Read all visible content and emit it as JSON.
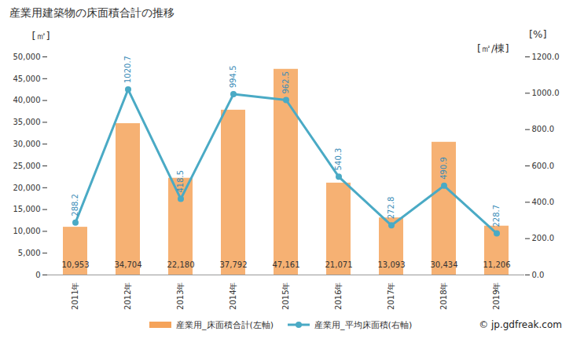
{
  "chart_data": {
    "type": "bar",
    "title": "産業用建築物の床面積合計の推移",
    "y_label": "[㎡]",
    "y2_label": "[%]",
    "y2_sublabel": "[㎡/棟]",
    "source": "© jp.gdfreak.com",
    "categories": [
      "2011年",
      "2012年",
      "2013年",
      "2014年",
      "2015年",
      "2016年",
      "2017年",
      "2018年",
      "2019年"
    ],
    "series": [
      {
        "name": "産業用_床面積合計(左軸)",
        "type": "bar",
        "color": "#f5a35a",
        "values": [
          10953,
          34704,
          22180,
          37792,
          47161,
          21071,
          13093,
          30434,
          11206
        ],
        "value_labels": [
          "10,953",
          "34,704",
          "22,180",
          "37,792",
          "47,161",
          "21,071",
          "13,093",
          "30,434",
          "11,206"
        ]
      },
      {
        "name": "産業用_平均床面積(右軸)",
        "type": "line",
        "axis": "y2",
        "color": "#4aaac5",
        "marker": "circle",
        "values": [
          288.2,
          1020.7,
          418.5,
          994.5,
          962.5,
          540.3,
          272.8,
          490.9,
          228.7
        ]
      }
    ],
    "ylim": [
      0,
      50000
    ],
    "yticks": [
      0,
      {
        "value": 5000,
        "label": "5,000"
      },
      {
        "value": 10000,
        "label": "10,000"
      },
      {
        "value": 15000,
        "label": "15,000"
      },
      {
        "value": 20000,
        "label": "20,000"
      },
      {
        "value": 25000,
        "label": "25,000"
      },
      {
        "value": 30000,
        "label": "30,000"
      },
      {
        "value": 35000,
        "label": "35,000"
      },
      {
        "value": 40000,
        "label": "40,000"
      },
      {
        "value": 45000,
        "label": "45,000"
      },
      {
        "value": 50000,
        "label": "50,000"
      }
    ],
    "y2lim": [
      0,
      1200
    ],
    "y2ticks": [
      {
        "value": 0,
        "label": "0.0"
      },
      {
        "value": 200,
        "label": "200.0"
      },
      {
        "value": 400,
        "label": "400.0"
      },
      {
        "value": 600,
        "label": "600.0"
      },
      {
        "value": 800,
        "label": "800.0"
      },
      {
        "value": 1000,
        "label": "1000.0"
      },
      {
        "value": 1200,
        "label": "1200.0"
      }
    ],
    "grid": false,
    "legend": "bottom",
    "data_labels": true
  }
}
